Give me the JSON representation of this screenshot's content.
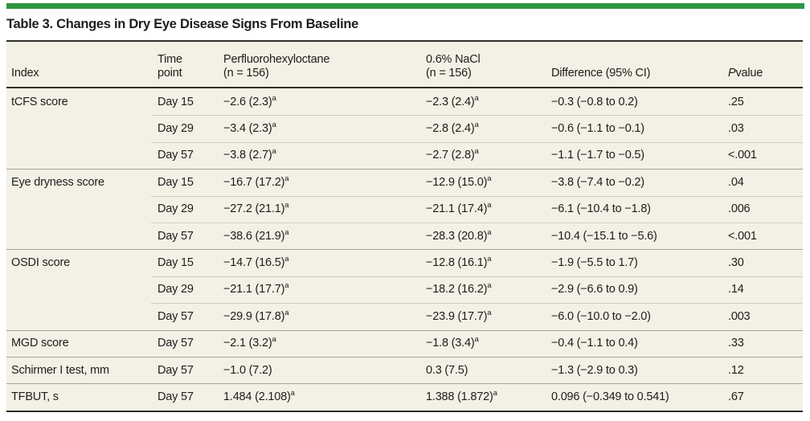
{
  "colors": {
    "accent": "#2e9642",
    "table-bg": "#f3f0e6",
    "rule-dark": "#2e2d29",
    "sep-group": "#a6a49a",
    "sep-row": "#cfccc1",
    "ink": "#1e1d1b"
  },
  "table": {
    "title": "Table 3. Changes in Dry Eye Disease Signs From Baseline",
    "headers": {
      "index": "Index",
      "time": "Time\npoint",
      "pfh": "Perfluorohexyloctane\n(n = 156)",
      "nacl": "0.6% NaCl\n(n = 156)",
      "diff": "Difference (95% CI)",
      "p_italic": "P",
      "p_rest": " value"
    },
    "rows": [
      {
        "index": "tCFS score",
        "time": "Day 15",
        "pfh": "−2.6 (2.3)",
        "pfh_sup": "a",
        "nacl": "−2.3 (2.4)",
        "nacl_sup": "a",
        "diff": "−0.3 (−0.8 to 0.2)",
        "p": ".25",
        "group_start": false
      },
      {
        "index": "",
        "time": "Day 29",
        "pfh": "−3.4 (2.3)",
        "pfh_sup": "a",
        "nacl": "−2.8 (2.4)",
        "nacl_sup": "a",
        "diff": "−0.6 (−1.1 to −0.1)",
        "p": ".03",
        "group_start": false
      },
      {
        "index": "",
        "time": "Day 57",
        "pfh": "−3.8 (2.7)",
        "pfh_sup": "a",
        "nacl": "−2.7 (2.8)",
        "nacl_sup": "a",
        "diff": "−1.1 (−1.7 to −0.5)",
        "p": "<.001",
        "group_start": false
      },
      {
        "index": "Eye dryness score",
        "time": "Day 15",
        "pfh": "−16.7 (17.2)",
        "pfh_sup": "a",
        "nacl": "−12.9 (15.0)",
        "nacl_sup": "a",
        "diff": "−3.8 (−7.4 to −0.2)",
        "p": ".04",
        "group_start": true
      },
      {
        "index": "",
        "time": "Day 29",
        "pfh": "−27.2 (21.1)",
        "pfh_sup": "a",
        "nacl": "−21.1 (17.4)",
        "nacl_sup": "a",
        "diff": "−6.1 (−10.4 to −1.8)",
        "p": ".006",
        "group_start": false
      },
      {
        "index": "",
        "time": "Day 57",
        "pfh": "−38.6 (21.9)",
        "pfh_sup": "a",
        "nacl": "−28.3 (20.8)",
        "nacl_sup": "a",
        "diff": "−10.4 (−15.1 to −5.6)",
        "p": "<.001",
        "group_start": false
      },
      {
        "index": "OSDI score",
        "time": "Day 15",
        "pfh": "−14.7 (16.5)",
        "pfh_sup": "a",
        "nacl": "−12.8 (16.1)",
        "nacl_sup": "a",
        "diff": "−1.9 (−5.5 to 1.7)",
        "p": ".30",
        "group_start": true
      },
      {
        "index": "",
        "time": "Day 29",
        "pfh": "−21.1 (17.7)",
        "pfh_sup": "a",
        "nacl": "−18.2 (16.2)",
        "nacl_sup": "a",
        "diff": "−2.9 (−6.6 to 0.9)",
        "p": ".14",
        "group_start": false
      },
      {
        "index": "",
        "time": "Day 57",
        "pfh": "−29.9 (17.8)",
        "pfh_sup": "a",
        "nacl": "−23.9 (17.7)",
        "nacl_sup": "a",
        "diff": "−6.0 (−10.0 to −2.0)",
        "p": ".003",
        "group_start": false
      },
      {
        "index": "MGD score",
        "time": "Day 57",
        "pfh": "−2.1 (3.2)",
        "pfh_sup": "a",
        "nacl": "−1.8 (3.4)",
        "nacl_sup": "a",
        "diff": "−0.4 (−1.1 to 0.4)",
        "p": ".33",
        "group_start": true
      },
      {
        "index": "Schirmer I test, mm",
        "time": "Day 57",
        "pfh": "−1.0 (7.2)",
        "pfh_sup": "",
        "nacl": "0.3 (7.5)",
        "nacl_sup": "",
        "diff": "−1.3 (−2.9 to 0.3)",
        "p": ".12",
        "group_start": true
      },
      {
        "index": "TFBUT, s",
        "time": "Day 57",
        "pfh": "1.484 (2.108)",
        "pfh_sup": "a",
        "nacl": "1.388 (1.872)",
        "nacl_sup": "a",
        "diff": "0.096 (−0.349 to 0.541)",
        "p": ".67",
        "group_start": true
      }
    ]
  }
}
